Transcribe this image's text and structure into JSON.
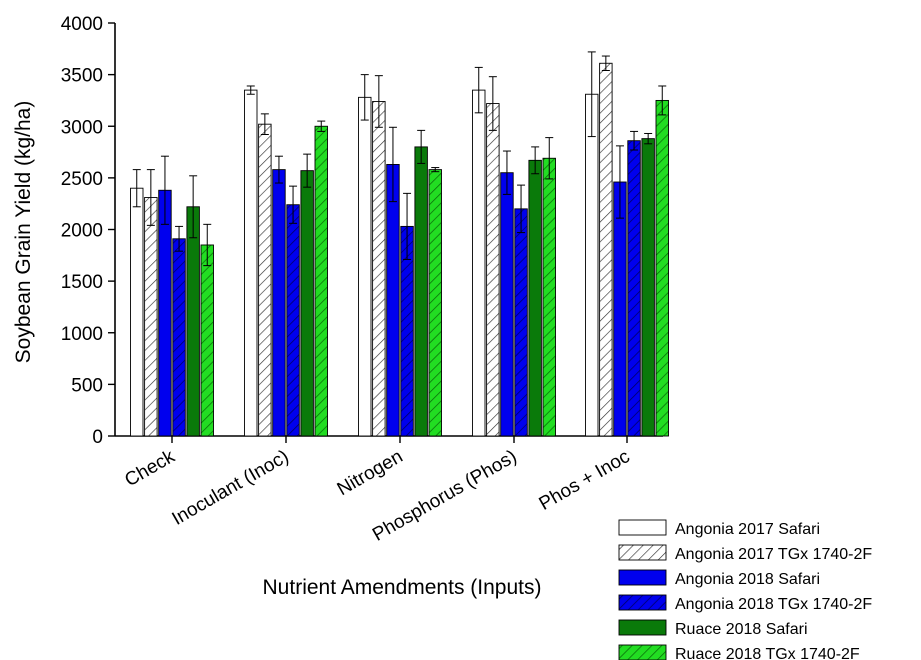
{
  "chart_data": {
    "type": "bar",
    "title": "",
    "xlabel": "Nutrient Amendments (Inputs)",
    "ylabel": "Soybean Grain Yield (kg/ha)",
    "ylim": [
      0,
      4000
    ],
    "yticks": [
      "0",
      "500",
      "1000",
      "1500",
      "2000",
      "2500",
      "3000",
      "3500",
      "4000"
    ],
    "grid": false,
    "legend_position": "bottom-right",
    "categories": [
      "Check",
      "Inoculant (Inoc)",
      "Nitrogen",
      "Phosphorus (Phos)",
      "Phos + Inoc"
    ],
    "series": [
      {
        "name": "Angonia 2017 Safari",
        "color": "#ffffff",
        "pattern": "none",
        "values": [
          2400,
          3350,
          3280,
          3350,
          3310
        ],
        "errors": [
          180,
          40,
          220,
          220,
          410
        ]
      },
      {
        "name": "Angonia 2017 TGx 1740-2F",
        "color": "#ffffff",
        "pattern": "hatch",
        "values": [
          2310,
          3020,
          3240,
          3220,
          3610
        ],
        "errors": [
          270,
          100,
          250,
          260,
          70
        ]
      },
      {
        "name": "Angonia 2018 Safari",
        "color": "#0000ee",
        "pattern": "none",
        "values": [
          2380,
          2580,
          2630,
          2550,
          2460
        ],
        "errors": [
          330,
          130,
          360,
          210,
          350
        ]
      },
      {
        "name": "Angonia 2018 TGx 1740-2F",
        "color": "#0000ee",
        "pattern": "hatch",
        "values": [
          1910,
          2240,
          2030,
          2200,
          2860
        ],
        "errors": [
          120,
          180,
          320,
          230,
          90
        ]
      },
      {
        "name": "Ruace 2018 Safari",
        "color": "#0a7a0a",
        "pattern": "none",
        "values": [
          2220,
          2570,
          2800,
          2670,
          2880
        ],
        "errors": [
          300,
          160,
          160,
          130,
          50
        ]
      },
      {
        "name": "Ruace 2018 TGx 1740-2F",
        "color": "#22dd22",
        "pattern": "hatch",
        "values": [
          1850,
          3000,
          2580,
          2690,
          3250
        ],
        "errors": [
          200,
          50,
          20,
          200,
          140
        ]
      }
    ]
  }
}
